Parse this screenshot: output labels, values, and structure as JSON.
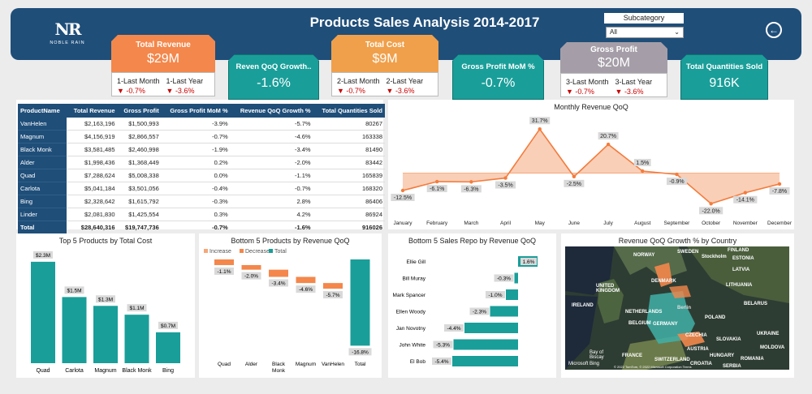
{
  "header": {
    "title": "Products Sales Analysis 2014-2017",
    "logo_mark": "NR",
    "logo_text": "NOBLE RAIN",
    "subcategory_label": "Subcategory",
    "subcategory_value": "All"
  },
  "colors": {
    "header": "#1f4e79",
    "teal": "#1a9e99",
    "orange": "#f4874b",
    "amber": "#f0a04b",
    "grey": "#a59ea8",
    "red": "#cc0000"
  },
  "kpis": {
    "total_revenue": {
      "label": "Total Revenue",
      "value": "$29M",
      "c1_label": "1-Last Month",
      "c1_value": "▼ -0.7%",
      "c2_label": "1-Last Year",
      "c2_value": "▼ -3.6%"
    },
    "revenue_qoq": {
      "label": "Reven QoQ Growth..",
      "value": "-1.6%"
    },
    "total_cost": {
      "label": "Total Cost",
      "value": "$9M",
      "c1_label": "2-Last Month",
      "c1_value": "▼ -0.7%",
      "c2_label": "2-Last Year",
      "c2_value": "▼ -3.6%"
    },
    "gross_profit_mom": {
      "label": "Gross Profit MoM %",
      "value": "-0.7%"
    },
    "gross_profit": {
      "label": "Gross Profit",
      "value": "$20M",
      "c1_label": "3-Last Month",
      "c1_value": "▼ -0.7%",
      "c2_label": "3-Last Year",
      "c2_value": "▼ -3.6%"
    },
    "total_quantities": {
      "label": "Total Quantities Sold",
      "value": "916K"
    }
  },
  "table": {
    "headers": [
      "ProductName",
      "Total Revenue",
      "Gross Profit",
      "Gross Profit MoM %",
      "Revenue QoQ Growth %",
      "Total Quantities Sold"
    ],
    "rows": [
      [
        "VanHelen",
        "$2,163,196",
        "$1,500,993",
        "-3.9%",
        "-5.7%",
        "80267"
      ],
      [
        "Magnum",
        "$4,156,919",
        "$2,866,557",
        "-0.7%",
        "-4.6%",
        "163338"
      ],
      [
        "Black Monk",
        "$3,581,485",
        "$2,460,998",
        "-1.9%",
        "-3.4%",
        "81490"
      ],
      [
        "Alder",
        "$1,998,436",
        "$1,368,449",
        "0.2%",
        "-2.0%",
        "83442"
      ],
      [
        "Quad",
        "$7,288,624",
        "$5,008,338",
        "0.0%",
        "-1.1%",
        "165839"
      ],
      [
        "Carlota",
        "$5,041,184",
        "$3,501,056",
        "-0.4%",
        "-0.7%",
        "168320"
      ],
      [
        "Bing",
        "$2,328,642",
        "$1,615,792",
        "-0.3%",
        "2.8%",
        "86406"
      ],
      [
        "Linder",
        "$2,081,830",
        "$1,425,554",
        "0.3%",
        "4.2%",
        "86924"
      ]
    ],
    "total": [
      "Total",
      "$28,640,316",
      "$19,747,736",
      "-0.7%",
      "-1.6%",
      "916026"
    ]
  },
  "chart_data": [
    {
      "type": "area",
      "title": "Monthly Revenue QoQ",
      "categories": [
        "January",
        "February",
        "March",
        "April",
        "May",
        "June",
        "July",
        "August",
        "September",
        "October",
        "November",
        "December"
      ],
      "values": [
        -12.5,
        -6.1,
        -6.3,
        -3.5,
        31.7,
        -2.5,
        20.7,
        1.5,
        -0.9,
        -22.0,
        -14.1,
        -7.8
      ],
      "labels": [
        "-12.5%",
        "-6.1%",
        "-6.3%",
        "-3.5%",
        "31.7%",
        "-2.5%",
        "20.7%",
        "1.5%",
        "-0.9%",
        "-22.0%",
        "-14.1%",
        "-7.8%"
      ],
      "ylim": [
        -30,
        40
      ]
    },
    {
      "type": "bar",
      "title": "Top 5 Products by Total Cost",
      "categories": [
        "Quad",
        "Carlota",
        "Magnum",
        "Black Monk",
        "Bing"
      ],
      "values": [
        2.3,
        1.5,
        1.3,
        1.1,
        0.7
      ],
      "labels": [
        "$2.3M",
        "$1.5M",
        "$1.3M",
        "$1.1M",
        "$0.7M"
      ],
      "ylim": [
        0,
        2.5
      ]
    },
    {
      "type": "bar",
      "title": "Bottom 5 Products by Revenue QoQ",
      "categories": [
        "Quad",
        "Alder",
        "Black Monk",
        "Magnum",
        "VanHelen",
        "Total"
      ],
      "values": [
        -1.1,
        -2.0,
        -3.4,
        -4.6,
        -5.7,
        -16.8
      ],
      "labels": [
        "-1.1%",
        "-2.0%",
        "-3.4%",
        "-4.6%",
        "-5.7%",
        "-16.8%"
      ],
      "legend": [
        "Increase",
        "Decrease",
        "Total"
      ],
      "ylim": [
        -18,
        0
      ]
    },
    {
      "type": "bar",
      "title": "Bottom 5 Sales Repo by Revenue QoQ",
      "categories": [
        "Ellie Gill",
        "Bill Muray",
        "Mark Spancer",
        "Ellen Woody",
        "Jan Novotny",
        "John White",
        "El Bob"
      ],
      "values": [
        1.6,
        -0.3,
        -1.0,
        -2.3,
        -4.4,
        -5.3,
        -5.4
      ],
      "labels": [
        "1.6%",
        "-0.3%",
        "-1.0%",
        "-2.3%",
        "-4.4%",
        "-5.3%",
        "-5.4%"
      ],
      "xlim": [
        -6,
        2
      ]
    }
  ],
  "map": {
    "title": "Revenue QoQ Growth % by Country",
    "labels": [
      "NORWAY",
      "SWEDEN",
      "FINLAND",
      "Stockholm",
      "ESTONIA",
      "DENMARK",
      "LATVIA",
      "LITHUANIA",
      "UNITED KINGDOM",
      "BELARUS",
      "IRELAND",
      "NETHERLANDS",
      "Berlin",
      "POLAND",
      "BELGIUM",
      "GERMANY",
      "CZECHIA",
      "UKRAINE",
      "SLOVAKIA",
      "MOLDOVA",
      "FRANCE",
      "AUSTRIA",
      "HUNGARY",
      "ROMANIA",
      "SWITZERLAND",
      "CROATIA",
      "Bay of Biscay",
      "SERBIA",
      "Microsoft Bing",
      "© 2022 TomTom, © 2022 Microsoft Corporation Terms"
    ]
  }
}
